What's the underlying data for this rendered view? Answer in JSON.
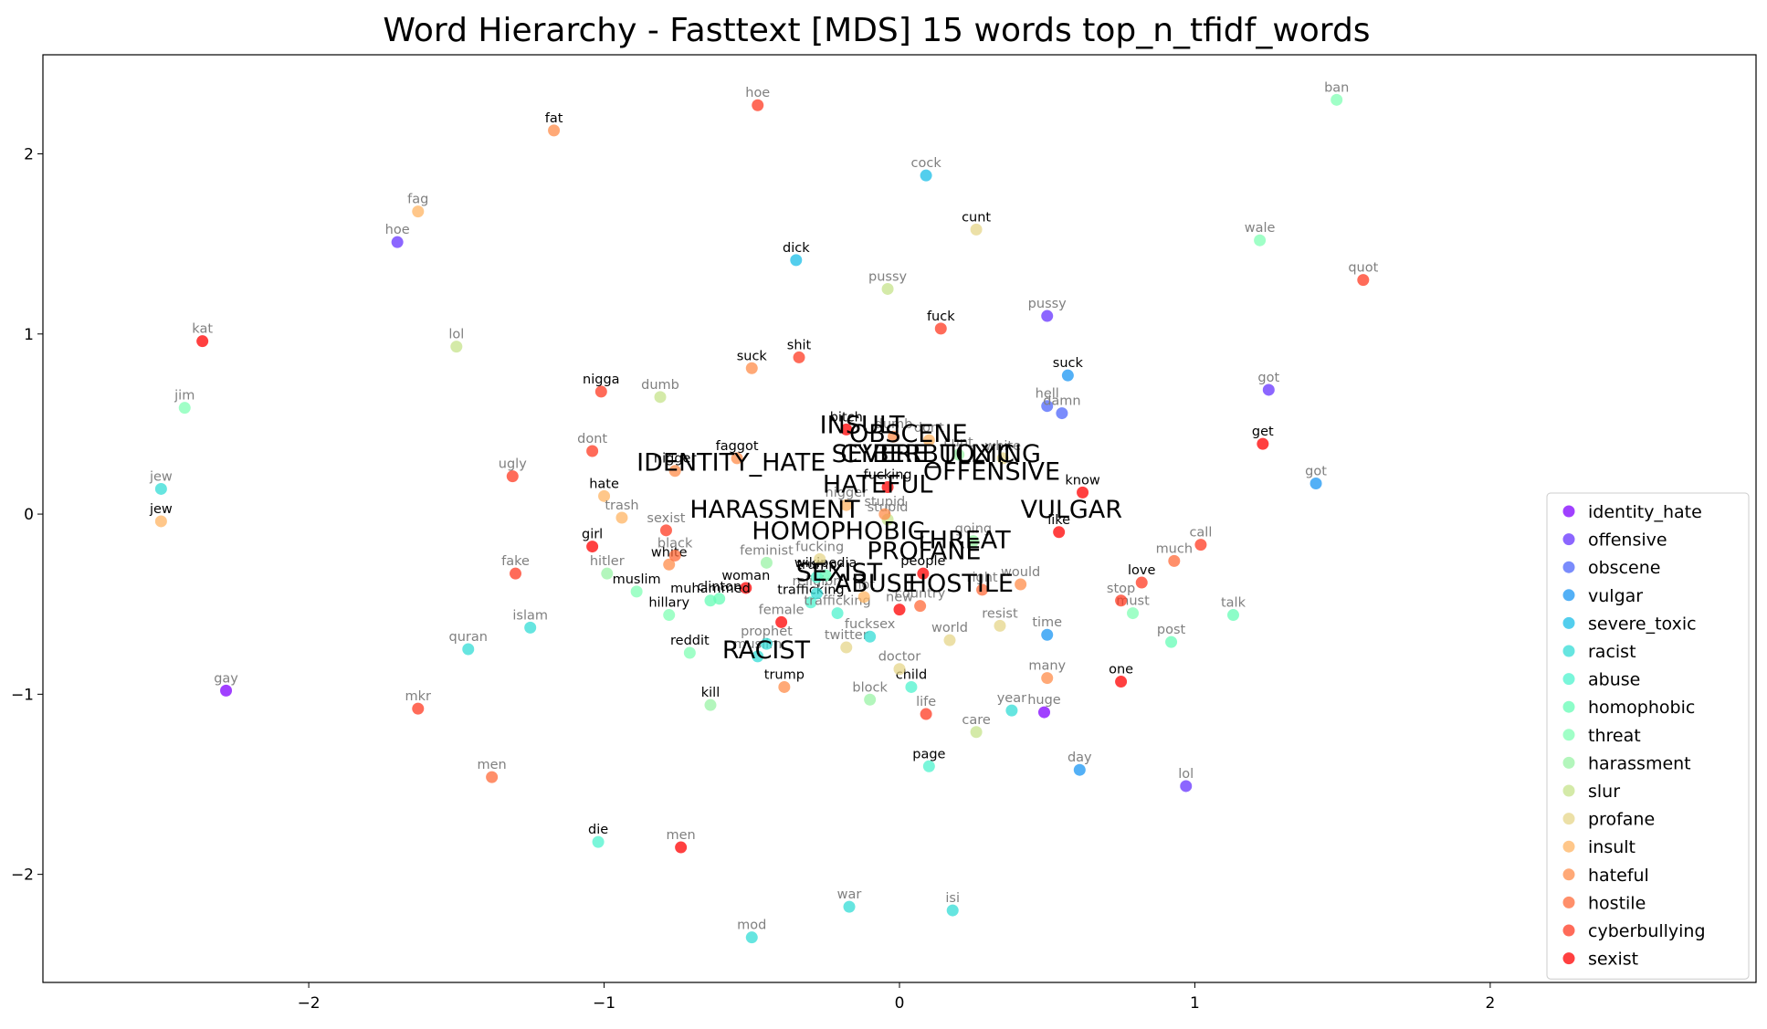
{
  "chart_data": {
    "type": "scatter",
    "title": "Word Hierarchy - Fasttext [MDS] 15 words top_n_tfidf_words",
    "xlabel": "",
    "ylabel": "",
    "xlim": [
      -2.9,
      2.9
    ],
    "ylim": [
      -2.6,
      2.55
    ],
    "xticks": [
      -2,
      -1,
      0,
      1,
      2
    ],
    "yticks": [
      -2,
      -1,
      0,
      1,
      2
    ],
    "legend_position": "lower-right",
    "series": [
      {
        "name": "identity_hate",
        "color": "#8000ff"
      },
      {
        "name": "offensive",
        "color": "#6633ff"
      },
      {
        "name": "obscene",
        "color": "#4d66fb"
      },
      {
        "name": "vulgar",
        "color": "#1a96f3"
      },
      {
        "name": "severe_toxic",
        "color": "#19bde7"
      },
      {
        "name": "racist",
        "color": "#33dcd6"
      },
      {
        "name": "abuse",
        "color": "#4df3ce"
      },
      {
        "name": "homophobic",
        "color": "#66fcb6"
      },
      {
        "name": "threat",
        "color": "#80ffb4"
      },
      {
        "name": "harassment",
        "color": "#99f3a5"
      },
      {
        "name": "slur",
        "color": "#c6e38b"
      },
      {
        "name": "profane",
        "color": "#e6d58a"
      },
      {
        "name": "insult",
        "color": "#ffb463"
      },
      {
        "name": "hateful",
        "color": "#ff8c4a"
      },
      {
        "name": "hostile",
        "color": "#ff6a38"
      },
      {
        "name": "cyberbullying",
        "color": "#ff3a21"
      },
      {
        "name": "sexist",
        "color": "#ff0000"
      }
    ],
    "points": [
      {
        "word": "hoe",
        "x": -1.7,
        "y": 1.51,
        "s": 1,
        "bold": false
      },
      {
        "word": "pussy",
        "x": 0.5,
        "y": 1.1,
        "s": 1,
        "bold": false
      },
      {
        "word": "got",
        "x": 1.25,
        "y": 0.69,
        "s": 1,
        "bold": false
      },
      {
        "word": "lol",
        "x": 0.97,
        "y": -1.51,
        "s": 1,
        "bold": false
      },
      {
        "word": "hell",
        "x": 0.5,
        "y": 0.6,
        "s": 2,
        "bold": false
      },
      {
        "word": "damn",
        "x": 0.55,
        "y": 0.56,
        "s": 2,
        "bold": false
      },
      {
        "word": "suck",
        "x": 0.57,
        "y": 0.77,
        "s": 3,
        "bold": true
      },
      {
        "word": "got",
        "x": 1.41,
        "y": 0.17,
        "s": 3,
        "bold": false
      },
      {
        "word": "time",
        "x": 0.5,
        "y": -0.67,
        "s": 3,
        "bold": false
      },
      {
        "word": "day",
        "x": 0.61,
        "y": -1.42,
        "s": 3,
        "bold": false
      },
      {
        "word": "cock",
        "x": 0.09,
        "y": 1.88,
        "s": 4,
        "bold": false
      },
      {
        "word": "dick",
        "x": -0.35,
        "y": 1.41,
        "s": 4,
        "bold": true
      },
      {
        "word": "jew",
        "x": -2.5,
        "y": 0.14,
        "s": 5,
        "bold": false
      },
      {
        "word": "quran",
        "x": -1.46,
        "y": -0.75,
        "s": 5,
        "bold": false
      },
      {
        "word": "islam",
        "x": -1.25,
        "y": -0.63,
        "s": 5,
        "bold": false
      },
      {
        "word": "war",
        "x": -0.17,
        "y": -2.18,
        "s": 5,
        "bold": false
      },
      {
        "word": "isi",
        "x": 0.18,
        "y": -2.2,
        "s": 5,
        "bold": false
      },
      {
        "word": "mod",
        "x": -0.5,
        "y": -2.35,
        "s": 5,
        "bold": false
      },
      {
        "word": "year",
        "x": 0.38,
        "y": -1.09,
        "s": 5,
        "bold": false
      },
      {
        "word": "die",
        "x": -1.02,
        "y": -1.82,
        "s": 6,
        "bold": true
      },
      {
        "word": "child",
        "x": 0.04,
        "y": -0.96,
        "s": 6,
        "bold": true
      },
      {
        "word": "page",
        "x": 0.1,
        "y": -1.4,
        "s": 6,
        "bold": true
      },
      {
        "word": "talk",
        "x": 1.13,
        "y": -0.56,
        "s": 7,
        "bold": false
      },
      {
        "word": "post",
        "x": 0.92,
        "y": -0.71,
        "s": 7,
        "bold": false
      },
      {
        "word": "jim",
        "x": -2.42,
        "y": 0.59,
        "s": 8,
        "bold": false
      },
      {
        "word": "ban",
        "x": 1.48,
        "y": 2.3,
        "s": 8,
        "bold": false
      },
      {
        "word": "wale",
        "x": 1.22,
        "y": 1.52,
        "s": 8,
        "bold": false
      },
      {
        "word": "muslim",
        "x": -0.89,
        "y": -0.43,
        "s": 8,
        "bold": true
      },
      {
        "word": "hillary",
        "x": -0.78,
        "y": -0.56,
        "s": 8,
        "bold": true
      },
      {
        "word": "reddit",
        "x": -0.71,
        "y": -0.77,
        "s": 8,
        "bold": true
      },
      {
        "word": "must",
        "x": 0.79,
        "y": -0.55,
        "s": 8,
        "bold": false
      },
      {
        "word": "hitler",
        "x": -0.99,
        "y": -0.33,
        "s": 9,
        "bold": false
      },
      {
        "word": "feminist",
        "x": -0.45,
        "y": -0.27,
        "s": 9,
        "bold": false
      },
      {
        "word": "kill",
        "x": -0.64,
        "y": -1.06,
        "s": 9,
        "bold": true
      },
      {
        "word": "block",
        "x": -0.1,
        "y": -1.03,
        "s": 9,
        "bold": false
      },
      {
        "word": "lol",
        "x": -1.5,
        "y": 0.93,
        "s": 10,
        "bold": false
      },
      {
        "word": "pussy",
        "x": -0.04,
        "y": 1.25,
        "s": 10,
        "bold": false
      },
      {
        "word": "dumb",
        "x": -0.81,
        "y": 0.65,
        "s": 10,
        "bold": false
      },
      {
        "word": "care",
        "x": 0.26,
        "y": -1.21,
        "s": 10,
        "bold": false
      },
      {
        "word": "stupid",
        "x": -0.04,
        "y": -0.03,
        "s": 10,
        "bold": false
      },
      {
        "word": "world",
        "x": 0.17,
        "y": -0.7,
        "s": 11,
        "bold": false
      },
      {
        "word": "resist",
        "x": 0.34,
        "y": -0.62,
        "s": 11,
        "bold": false
      },
      {
        "word": "doctor",
        "x": 0.0,
        "y": -0.86,
        "s": 11,
        "bold": false
      },
      {
        "word": "twitter",
        "x": -0.18,
        "y": -0.74,
        "s": 11,
        "bold": false
      },
      {
        "word": "cunt",
        "x": 0.26,
        "y": 1.58,
        "s": 11,
        "bold": true
      },
      {
        "word": "fag",
        "x": -1.63,
        "y": 1.68,
        "s": 12,
        "bold": false
      },
      {
        "word": "jew",
        "x": -2.5,
        "y": -0.04,
        "s": 12,
        "bold": true
      },
      {
        "word": "hate",
        "x": -1.0,
        "y": 0.1,
        "s": 12,
        "bold": true
      },
      {
        "word": "trash",
        "x": -0.94,
        "y": -0.02,
        "s": 12,
        "bold": false
      },
      {
        "word": "faggot",
        "x": -0.55,
        "y": 0.31,
        "s": 13,
        "bold": true
      },
      {
        "word": "nigger",
        "x": -0.76,
        "y": 0.24,
        "s": 13,
        "bold": true
      },
      {
        "word": "white",
        "x": -0.78,
        "y": -0.28,
        "s": 13,
        "bold": true
      },
      {
        "word": "trump",
        "x": -0.39,
        "y": -0.96,
        "s": 13,
        "bold": true
      },
      {
        "word": "many",
        "x": 0.5,
        "y": -0.91,
        "s": 13,
        "bold": false
      },
      {
        "word": "would",
        "x": 0.41,
        "y": -0.39,
        "s": 13,
        "bold": false
      },
      {
        "word": "men",
        "x": -1.38,
        "y": -1.46,
        "s": 14,
        "bold": false
      },
      {
        "word": "black",
        "x": -0.76,
        "y": -0.23,
        "s": 14,
        "bold": false
      },
      {
        "word": "much",
        "x": 0.93,
        "y": -0.26,
        "s": 14,
        "bold": false
      },
      {
        "word": "country",
        "x": 0.07,
        "y": -0.51,
        "s": 14,
        "bold": false
      },
      {
        "word": "fake",
        "x": -1.3,
        "y": -0.33,
        "s": 15,
        "bold": false
      },
      {
        "word": "ugly",
        "x": -1.31,
        "y": 0.21,
        "s": 15,
        "bold": false
      },
      {
        "word": "dont",
        "x": -1.04,
        "y": 0.35,
        "s": 15,
        "bold": false
      },
      {
        "word": "hoe",
        "x": -0.48,
        "y": 2.27,
        "s": 15,
        "bold": false
      },
      {
        "word": "shit",
        "x": -0.34,
        "y": 0.87,
        "s": 15,
        "bold": true
      },
      {
        "word": "fuck",
        "x": 0.14,
        "y": 1.03,
        "s": 15,
        "bold": true
      },
      {
        "word": "sexist",
        "x": -0.79,
        "y": -0.09,
        "s": 15,
        "bold": false
      },
      {
        "word": "quot",
        "x": 1.57,
        "y": 1.3,
        "s": 15,
        "bold": false
      },
      {
        "word": "call",
        "x": 1.02,
        "y": -0.17,
        "s": 15,
        "bold": false
      },
      {
        "word": "stop",
        "x": 0.75,
        "y": -0.48,
        "s": 15,
        "bold": false
      },
      {
        "word": "life",
        "x": 0.09,
        "y": -1.11,
        "s": 15,
        "bold": false
      },
      {
        "word": "mkr",
        "x": -1.63,
        "y": -1.08,
        "s": 15,
        "bold": false
      },
      {
        "word": "kat",
        "x": -2.36,
        "y": 0.96,
        "s": 16,
        "bold": false
      },
      {
        "word": "girl",
        "x": -1.04,
        "y": -0.18,
        "s": 16,
        "bold": true
      },
      {
        "word": "woman",
        "x": -0.52,
        "y": -0.41,
        "s": 16,
        "bold": true
      },
      {
        "word": "men",
        "x": -0.74,
        "y": -1.85,
        "s": 16,
        "bold": false
      },
      {
        "word": "get",
        "x": 1.23,
        "y": 0.39,
        "s": 16,
        "bold": true
      },
      {
        "word": "know",
        "x": 0.62,
        "y": 0.12,
        "s": 16,
        "bold": true
      },
      {
        "word": "like",
        "x": 0.54,
        "y": -0.1,
        "s": 16,
        "bold": true
      },
      {
        "word": "one",
        "x": 0.75,
        "y": -0.93,
        "s": 16,
        "bold": true
      },
      {
        "word": "people",
        "x": 0.08,
        "y": -0.33,
        "s": 16,
        "bold": true
      },
      {
        "word": "bitch",
        "x": -0.18,
        "y": 0.47,
        "s": 16,
        "bold": true
      },
      {
        "word": "fucking",
        "x": -0.04,
        "y": 0.15,
        "s": 16,
        "bold": true
      },
      {
        "word": "female",
        "x": -0.4,
        "y": -0.6,
        "s": 16,
        "bold": false
      },
      {
        "word": "gay",
        "x": -2.28,
        "y": -0.98,
        "s": 0,
        "bold": false
      },
      {
        "word": "huge",
        "x": 0.49,
        "y": -1.1,
        "s": 0,
        "bold": false
      },
      {
        "word": "fat",
        "x": -1.17,
        "y": 2.13,
        "s": 13,
        "bold": true
      },
      {
        "word": "suck",
        "x": -0.5,
        "y": 0.81,
        "s": 13,
        "bold": true
      },
      {
        "word": "nigga",
        "x": -1.01,
        "y": 0.68,
        "s": 15,
        "bold": true
      },
      {
        "word": "love",
        "x": 0.82,
        "y": -0.38,
        "s": 15,
        "bold": true
      },
      {
        "word": "muhammed",
        "x": -0.64,
        "y": -0.48,
        "s": 7,
        "bold": true
      },
      {
        "word": "clinton",
        "x": -0.61,
        "y": -0.47,
        "s": 7,
        "bold": true
      },
      {
        "word": "muslim",
        "x": -0.48,
        "y": -0.79,
        "s": 5,
        "bold": false
      },
      {
        "word": "prophet",
        "x": -0.45,
        "y": -0.72,
        "s": 5,
        "bold": false
      },
      {
        "word": "fucksex",
        "x": -0.1,
        "y": -0.68,
        "s": 5,
        "bold": false
      },
      {
        "word": "trafficking",
        "x": -0.3,
        "y": -0.49,
        "s": 6,
        "bold": true
      },
      {
        "word": "trafficking",
        "x": -0.21,
        "y": -0.55,
        "s": 6,
        "bold": false
      },
      {
        "word": "religion",
        "x": -0.28,
        "y": -0.44,
        "s": 5,
        "bold": false
      },
      {
        "word": "trump",
        "x": -0.28,
        "y": -0.35,
        "s": 6,
        "bold": true
      },
      {
        "word": "wikipedia",
        "x": -0.25,
        "y": -0.34,
        "s": 7,
        "bold": true
      },
      {
        "word": "fucking",
        "x": -0.27,
        "y": -0.25,
        "s": 11,
        "bold": false
      },
      {
        "word": "going",
        "x": 0.25,
        "y": -0.15,
        "s": 9,
        "bold": false
      },
      {
        "word": "right",
        "x": 0.28,
        "y": -0.42,
        "s": 14,
        "bold": false
      },
      {
        "word": "not",
        "x": -0.12,
        "y": -0.46,
        "s": 12,
        "bold": false
      },
      {
        "word": "new",
        "x": 0.0,
        "y": -0.53,
        "s": 16,
        "bold": false
      },
      {
        "word": "stupid",
        "x": -0.05,
        "y": 0.0,
        "s": 13,
        "bold": false
      },
      {
        "word": "white",
        "x": 0.35,
        "y": 0.31,
        "s": 11,
        "bold": false
      },
      {
        "word": "dont",
        "x": 0.1,
        "y": 0.41,
        "s": 12,
        "bold": false
      },
      {
        "word": "dumb",
        "x": -0.02,
        "y": 0.43,
        "s": 13,
        "bold": false
      },
      {
        "word": "cunt",
        "x": 0.2,
        "y": 0.33,
        "s": 9,
        "bold": false
      },
      {
        "word": "nigger",
        "x": -0.18,
        "y": 0.05,
        "s": 12,
        "bold": false
      }
    ],
    "labels": [
      {
        "text": "INSULT",
        "x": -0.27,
        "y": 0.45
      },
      {
        "text": "OBSCENE",
        "x": -0.17,
        "y": 0.4
      },
      {
        "text": "SEVERE_TOXIC",
        "x": -0.23,
        "y": 0.29
      },
      {
        "text": "IDENTITY_HATE",
        "x": -0.89,
        "y": 0.24
      },
      {
        "text": "CYBERBULLYING",
        "x": -0.2,
        "y": 0.29
      },
      {
        "text": "OFFENSIVE",
        "x": 0.08,
        "y": 0.19
      },
      {
        "text": "HATEFUL",
        "x": -0.26,
        "y": 0.12
      },
      {
        "text": "HARASSMENT",
        "x": -0.71,
        "y": -0.02
      },
      {
        "text": "VULGAR",
        "x": 0.41,
        "y": -0.02
      },
      {
        "text": "HOMOPHOBIC",
        "x": -0.5,
        "y": -0.14
      },
      {
        "text": "THREAT",
        "x": 0.05,
        "y": -0.19
      },
      {
        "text": "PROFANE",
        "x": -0.11,
        "y": -0.25
      },
      {
        "text": "SEXIST",
        "x": -0.35,
        "y": -0.37
      },
      {
        "text": "ABUSE",
        "x": -0.22,
        "y": -0.43
      },
      {
        "text": "HOSTILE",
        "x": 0.03,
        "y": -0.43
      },
      {
        "text": "RACIST",
        "x": -0.6,
        "y": -0.8
      }
    ]
  }
}
